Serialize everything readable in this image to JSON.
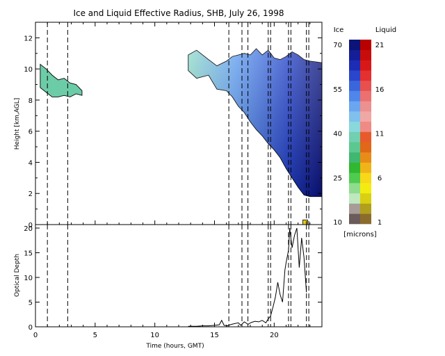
{
  "chart_data": [
    {
      "type": "heatmap",
      "title": "Ice and Liquid Effective Radius, SHB, July 26, 1998",
      "xlabel": "",
      "ylabel": "Height [km,AGL]",
      "xlim": [
        0,
        24
      ],
      "ylim": [
        0,
        13
      ],
      "x_ticks": [
        "0",
        "5",
        "10",
        "15",
        "20"
      ],
      "y_ticks": [
        "0",
        "2",
        "4",
        "6",
        "8",
        "10",
        "12"
      ],
      "vertical_dashed_lines_hours": [
        1.0,
        2.7,
        16.2,
        17.3,
        17.8,
        19.5,
        19.7,
        21.2,
        21.4,
        22.7,
        22.9
      ],
      "regions": [
        {
          "phase": "ice",
          "description_values": "thin cloud 8.2-10.3 km",
          "x_range": [
            0.4,
            3.9
          ],
          "base_km": [
            8.8,
            8.5,
            8.2,
            8.2,
            8.3,
            8.2,
            8.4,
            8.3
          ],
          "top_km": [
            10.3,
            10.0,
            9.6,
            9.3,
            9.4,
            9.1,
            9.0,
            8.6
          ],
          "typical_radius_microns": 40
        },
        {
          "phase": "ice",
          "x_range": [
            12.8,
            24
          ],
          "x": [
            12.8,
            13.5,
            14.5,
            15.2,
            16.0,
            16.5,
            17.0,
            17.5,
            18.0,
            18.5,
            19.0,
            19.5,
            20.0,
            20.5,
            21.0,
            21.5,
            22.0,
            22.5,
            23.0,
            24.0
          ],
          "top_km": [
            10.9,
            11.2,
            10.6,
            10.2,
            10.5,
            10.8,
            10.9,
            11.0,
            10.9,
            11.3,
            10.9,
            11.2,
            10.7,
            10.6,
            10.8,
            11.1,
            10.9,
            10.6,
            10.5,
            10.4
          ],
          "base_km": [
            9.9,
            9.4,
            9.6,
            8.7,
            8.6,
            8.2,
            7.6,
            7.2,
            6.6,
            6.1,
            5.7,
            5.2,
            4.8,
            4.3,
            3.6,
            3.0,
            2.4,
            1.9,
            1.8,
            1.8
          ],
          "typical_radius_microns": 60
        },
        {
          "phase": "liquid",
          "x_range": [
            22.4,
            22.8
          ],
          "height_km": [
            0.0,
            0.3
          ],
          "typical_radius_microns": 7
        }
      ],
      "colorbar": {
        "ice_label": "Ice",
        "liquid_label": "Liquid",
        "units": "[microns]",
        "ice_ticks": [
          "10",
          "25",
          "40",
          "55",
          "70"
        ],
        "liquid_ticks": [
          "1",
          "6",
          "11",
          "16",
          "21"
        ],
        "ice_colors": [
          "#6b5b5b",
          "#a89c97",
          "#bfe8bf",
          "#8fdc8f",
          "#4fcc4f",
          "#2fb830",
          "#40b870",
          "#5cc890",
          "#70d0b0",
          "#88d8dc",
          "#80c0ec",
          "#6aa6f0",
          "#4f86ea",
          "#3a66dc",
          "#2a46cc",
          "#1c2cb4",
          "#141e96",
          "#0c1478"
        ],
        "liquid_colors": [
          "#8c6c2c",
          "#b0a01c",
          "#d8d010",
          "#f4ec10",
          "#f8d818",
          "#f0b418",
          "#e88c18",
          "#e06818",
          "#e85a2c",
          "#f08a84",
          "#f0a8a4",
          "#ec9090",
          "#ec7070",
          "#e85050",
          "#e43030",
          "#d81818",
          "#c80c0c",
          "#b80000"
        ]
      }
    },
    {
      "type": "line",
      "title": "",
      "xlabel": "Time (hours, GMT)",
      "ylabel": "Optical Depth",
      "xlim": [
        0,
        24
      ],
      "ylim": [
        0,
        20
      ],
      "x_ticks": [
        "0",
        "5",
        "10",
        "15",
        "20"
      ],
      "y_ticks": [
        "0",
        "5",
        "10",
        "15",
        "20"
      ],
      "series": [
        {
          "x": [
            12.8,
            13.5,
            14.0,
            14.5,
            15.0,
            15.4,
            15.6,
            15.8,
            16.1,
            16.3,
            16.6,
            17.0,
            17.2,
            17.5,
            17.8,
            18.1,
            18.4,
            18.7,
            19.0,
            19.3,
            19.5,
            19.7,
            19.9,
            20.1,
            20.3,
            20.5,
            20.7,
            20.9,
            21.0,
            21.2,
            21.3,
            21.5,
            21.7,
            21.9,
            22.1,
            22.3,
            22.5,
            22.7
          ],
          "y": [
            0.1,
            0.1,
            0.2,
            0.2,
            0.3,
            0.4,
            1.3,
            0.3,
            0.2,
            0.4,
            0.6,
            0.8,
            0.3,
            1.0,
            0.5,
            0.9,
            1.1,
            1.0,
            1.3,
            0.8,
            1.6,
            2.2,
            4.0,
            6.0,
            9.0,
            6.5,
            5.0,
            11.5,
            13.0,
            15.5,
            20.0,
            16.0,
            18.5,
            20.0,
            12.0,
            18.0,
            14.0,
            7.0
          ]
        }
      ]
    }
  ]
}
